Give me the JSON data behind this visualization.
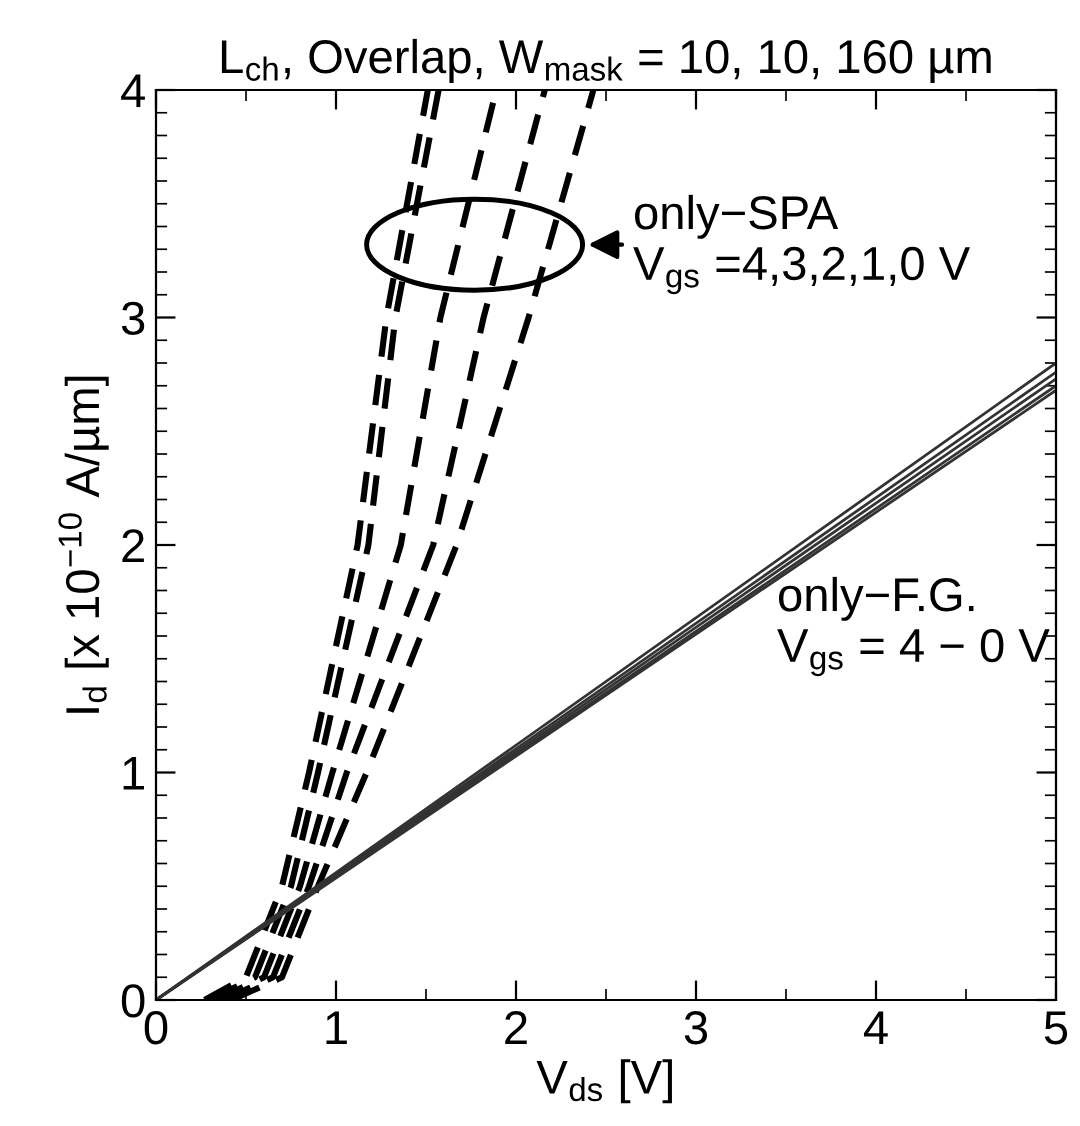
{
  "chart_data": {
    "type": "line",
    "title": "L$_{ch}$, Overlap, W$_{mask}$ = 10, 10, 160 µm",
    "xlabel": "V$_{ds}$ [V]",
    "ylabel": "I$_{d}$ [x 10$^{−10}$ A/µm]",
    "xlim": [
      0,
      5
    ],
    "ylim": [
      0,
      4
    ],
    "xticks": [
      0,
      1,
      2,
      3,
      4,
      5
    ],
    "yticks": [
      0,
      1,
      2,
      3,
      4
    ],
    "grid": false,
    "legend": false,
    "marker": "none",
    "series": [
      {
        "color": "#000000",
        "line_style": "dashed",
        "x": [
          0.27,
          0.5,
          0.7,
          0.85,
          1.12,
          1.28,
          1.51
        ],
        "values": [
          0,
          0.1,
          0.5,
          1,
          2,
          3,
          4
        ]
      },
      {
        "color": "#000000",
        "line_style": "dashed",
        "x": [
          0.3,
          0.55,
          0.75,
          0.9,
          1.18,
          1.33,
          1.57
        ],
        "values": [
          0,
          0.1,
          0.5,
          1,
          2,
          3,
          4
        ]
      },
      {
        "color": "#000000",
        "line_style": "dashed",
        "x": [
          0.33,
          0.6,
          0.8,
          0.98,
          1.36,
          1.58,
          1.89
        ],
        "values": [
          0,
          0.1,
          0.5,
          1,
          2,
          3,
          4
        ]
      },
      {
        "color": "#000000",
        "line_style": "dashed",
        "x": [
          0.37,
          0.65,
          0.85,
          1.06,
          1.54,
          1.82,
          2.16
        ],
        "values": [
          0,
          0.1,
          0.5,
          1,
          2,
          3,
          4
        ]
      },
      {
        "color": "#000000",
        "line_style": "dashed",
        "x": [
          0.42,
          0.7,
          0.9,
          1.17,
          1.67,
          2.07,
          2.43
        ],
        "values": [
          0,
          0.1,
          0.5,
          1,
          2,
          3,
          4
        ]
      },
      {
        "color": "#333333",
        "line_style": "solid",
        "x": [
          0,
          5
        ],
        "values": [
          0,
          2.8
        ]
      },
      {
        "color": "#333333",
        "line_style": "solid",
        "x": [
          0,
          5
        ],
        "values": [
          0,
          2.76
        ]
      },
      {
        "color": "#333333",
        "line_style": "solid",
        "x": [
          0,
          5
        ],
        "values": [
          0,
          2.73
        ]
      },
      {
        "color": "#333333",
        "line_style": "solid",
        "x": [
          0,
          5
        ],
        "values": [
          0,
          2.7
        ]
      },
      {
        "color": "#333333",
        "line_style": "solid",
        "x": [
          0,
          5
        ],
        "values": [
          0,
          2.68
        ]
      }
    ],
    "annotations": [
      "only−SPA\nV$_{gs}$ =4,3,2,1,0 V",
      "only−F.G.\nV$_{gs}$ = 4 − 0 V"
    ]
  }
}
